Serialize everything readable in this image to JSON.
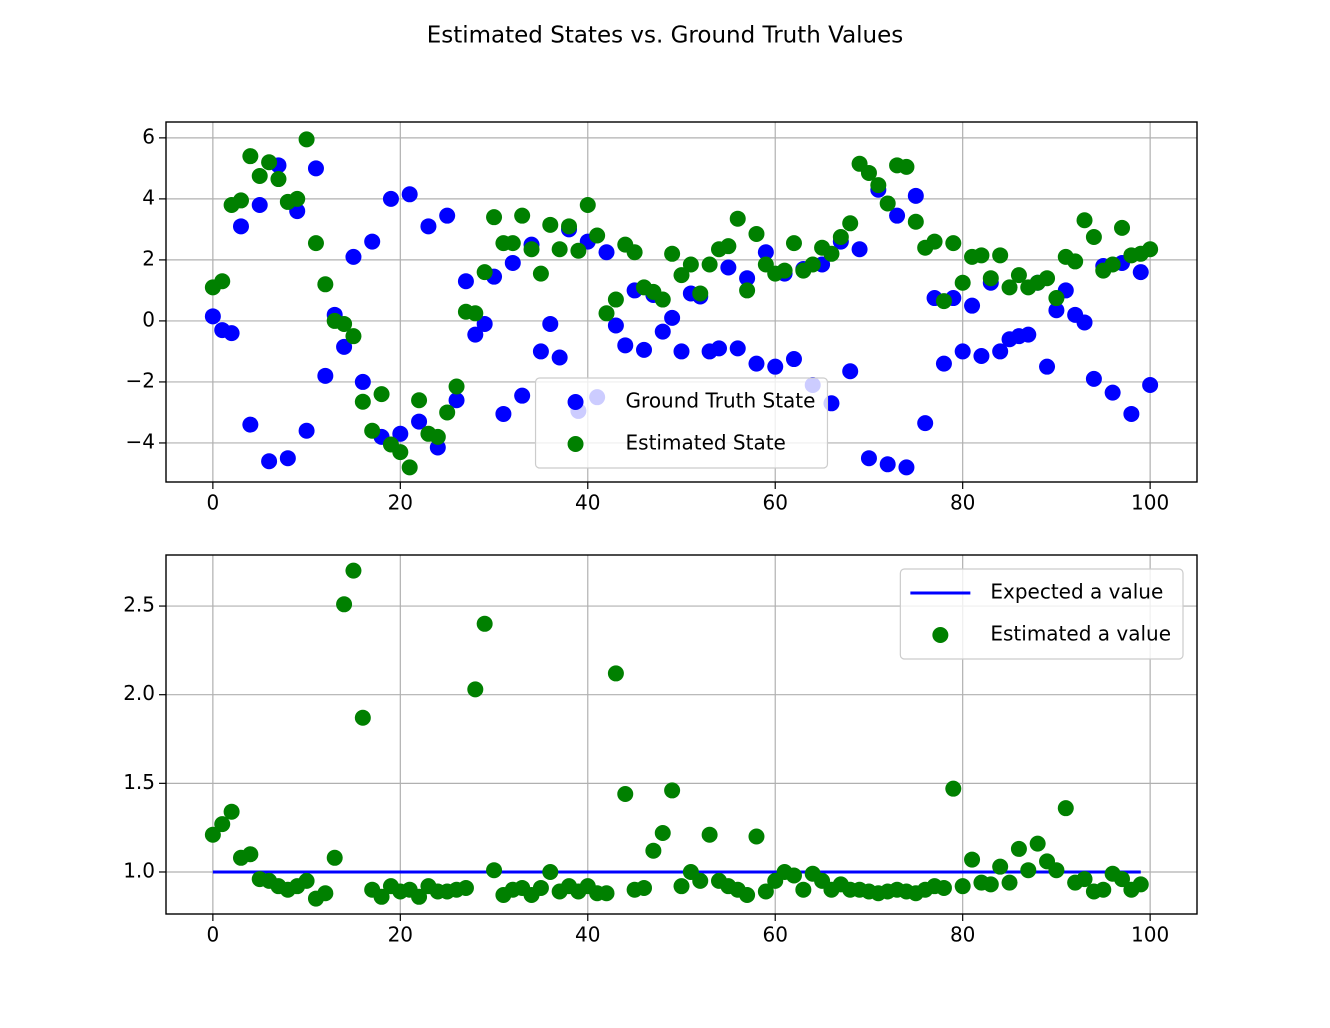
{
  "title": "Estimated States vs. Ground Truth Values",
  "chart_data": [
    {
      "type": "scatter",
      "x": [
        0,
        1,
        2,
        3,
        4,
        5,
        6,
        7,
        8,
        9,
        10,
        11,
        12,
        13,
        14,
        15,
        16,
        17,
        18,
        19,
        20,
        21,
        22,
        23,
        24,
        25,
        26,
        27,
        28,
        29,
        30,
        31,
        32,
        33,
        34,
        35,
        36,
        37,
        38,
        39,
        40,
        41,
        42,
        43,
        44,
        45,
        46,
        47,
        48,
        49,
        50,
        51,
        52,
        53,
        54,
        55,
        56,
        57,
        58,
        59,
        60,
        61,
        62,
        63,
        64,
        65,
        66,
        67,
        68,
        69,
        70,
        71,
        72,
        73,
        74,
        75,
        76,
        77,
        78,
        79,
        80,
        81,
        82,
        83,
        84,
        85,
        86,
        87,
        88,
        89,
        90,
        91,
        92,
        93,
        94,
        95,
        96,
        97,
        98,
        99,
        100
      ],
      "series": [
        {
          "name": "Ground Truth State",
          "color": "#0000ff",
          "values": [
            0.15,
            -0.3,
            -0.4,
            3.1,
            -3.4,
            3.8,
            -4.6,
            5.1,
            -4.5,
            3.6,
            -3.6,
            5.0,
            -1.8,
            0.2,
            -0.85,
            2.1,
            -2.0,
            2.6,
            -3.8,
            4.0,
            -3.7,
            4.15,
            -3.3,
            3.1,
            -4.15,
            3.45,
            -2.6,
            1.3,
            -0.45,
            -0.1,
            1.45,
            -3.05,
            1.9,
            -2.45,
            2.5,
            -1.0,
            -0.1,
            -1.2,
            3.0,
            -2.95,
            2.6,
            -2.5,
            2.25,
            -0.15,
            -0.8,
            1.0,
            -0.95,
            0.85,
            -0.35,
            0.1,
            -1.0,
            0.9,
            0.8,
            -1.0,
            -0.9,
            1.75,
            -0.9,
            1.4,
            -1.4,
            2.25,
            -1.5,
            1.55,
            -1.25,
            1.7,
            -2.1,
            1.85,
            -2.7,
            2.6,
            -1.65,
            2.35,
            -4.5,
            4.3,
            -4.7,
            3.45,
            -4.8,
            4.1,
            -3.35,
            0.75,
            -1.4,
            0.75,
            -1.0,
            0.5,
            -1.15,
            1.25,
            -1.0,
            -0.6,
            -0.5,
            -0.45,
            1.25,
            -1.5,
            0.35,
            1.0,
            0.2,
            -0.05,
            -1.9,
            1.8,
            -2.35,
            1.9,
            -3.05,
            1.6,
            -2.1
          ]
        },
        {
          "name": "Estimated State",
          "color": "#008000",
          "values": [
            1.1,
            1.3,
            3.8,
            3.95,
            5.4,
            4.75,
            5.2,
            4.65,
            3.9,
            4.0,
            5.95,
            2.55,
            1.2,
            0.0,
            -0.1,
            -0.5,
            -2.65,
            -3.6,
            -2.4,
            -4.05,
            -4.3,
            -4.8,
            -2.6,
            -3.7,
            -3.8,
            -3.0,
            -2.15,
            0.3,
            0.25,
            1.6,
            3.4,
            2.55,
            2.55,
            3.45,
            2.35,
            1.55,
            3.15,
            2.35,
            3.1,
            2.3,
            3.8,
            2.8,
            0.25,
            0.7,
            2.5,
            2.25,
            1.1,
            0.95,
            0.7,
            2.2,
            1.5,
            1.85,
            0.9,
            1.85,
            2.35,
            2.45,
            3.35,
            1.0,
            2.85,
            1.85,
            1.55,
            1.65,
            2.55,
            1.65,
            1.85,
            2.4,
            2.2,
            2.75,
            3.2,
            5.15,
            4.85,
            4.45,
            3.85,
            5.1,
            5.05,
            3.25,
            2.4,
            2.6,
            0.65,
            2.55,
            1.25,
            2.1,
            2.15,
            1.4,
            2.15,
            1.1,
            1.5,
            1.1,
            1.25,
            1.4,
            0.75,
            2.1,
            1.95,
            3.3,
            2.75,
            1.65,
            1.85,
            3.05,
            2.15,
            2.2,
            2.35
          ]
        }
      ],
      "xlim": [
        -5,
        105
      ],
      "xticks": [
        0,
        20,
        40,
        60,
        80,
        100
      ],
      "ylim": [
        -5.28,
        6.52
      ],
      "yticks": [
        {
          "value": -4,
          "label": "−4"
        },
        {
          "value": -2,
          "label": "−2"
        },
        0,
        2,
        4,
        6
      ],
      "grid": true,
      "legend": "lower center"
    },
    {
      "type": "scatter",
      "x": [
        0,
        1,
        2,
        3,
        4,
        5,
        6,
        7,
        8,
        9,
        10,
        11,
        12,
        13,
        14,
        15,
        16,
        17,
        18,
        19,
        20,
        21,
        22,
        23,
        24,
        25,
        26,
        27,
        28,
        29,
        30,
        31,
        32,
        33,
        34,
        35,
        36,
        37,
        38,
        39,
        40,
        41,
        42,
        43,
        44,
        45,
        46,
        47,
        48,
        49,
        50,
        51,
        52,
        53,
        54,
        55,
        56,
        57,
        58,
        59,
        60,
        61,
        62,
        63,
        64,
        65,
        66,
        67,
        68,
        69,
        70,
        71,
        72,
        73,
        74,
        75,
        76,
        77,
        78,
        79,
        80,
        81,
        82,
        83,
        84,
        85,
        86,
        87,
        88,
        89,
        90,
        91,
        92,
        93,
        94,
        95,
        96,
        97,
        98,
        99
      ],
      "series": [
        {
          "name": "Expected a value",
          "type": "line",
          "color": "#0000ff",
          "x": [
            0,
            99
          ],
          "values": [
            1,
            1
          ]
        },
        {
          "name": "Estimated a value",
          "color": "#008000",
          "values": [
            1.21,
            1.27,
            1.34,
            1.08,
            1.1,
            0.96,
            0.95,
            0.92,
            0.9,
            0.92,
            0.95,
            0.85,
            0.88,
            1.08,
            2.51,
            2.7,
            1.87,
            0.9,
            0.86,
            0.92,
            0.89,
            0.9,
            0.86,
            0.92,
            0.89,
            0.89,
            0.9,
            0.91,
            2.03,
            2.4,
            1.01,
            0.87,
            0.9,
            0.91,
            0.87,
            0.91,
            1.0,
            0.89,
            0.92,
            0.89,
            0.92,
            0.88,
            0.88,
            2.12,
            1.44,
            0.9,
            0.91,
            1.12,
            1.22,
            1.46,
            0.92,
            1.0,
            0.95,
            1.21,
            0.95,
            0.92,
            0.9,
            0.87,
            1.2,
            0.89,
            0.95,
            1.0,
            0.98,
            0.9,
            0.99,
            0.95,
            0.9,
            0.93,
            0.9,
            0.9,
            0.89,
            0.88,
            0.89,
            0.9,
            0.89,
            0.88,
            0.9,
            0.92,
            0.91,
            1.47,
            0.92,
            1.07,
            0.94,
            0.93,
            1.03,
            0.94,
            1.13,
            1.01,
            1.16,
            1.06,
            1.01,
            1.36,
            0.94,
            0.96,
            0.89,
            0.9,
            0.99,
            0.96,
            0.9,
            0.93
          ]
        }
      ],
      "xlim": [
        -5,
        105
      ],
      "xticks": [
        0,
        20,
        40,
        60,
        80,
        100
      ],
      "ylim": [
        0.763,
        2.788
      ],
      "yticks": [
        {
          "value": 1,
          "label": "1.0"
        },
        1.5,
        {
          "value": 2,
          "label": "2.0"
        },
        2.5
      ],
      "grid": true,
      "legend": "upper right"
    }
  ]
}
